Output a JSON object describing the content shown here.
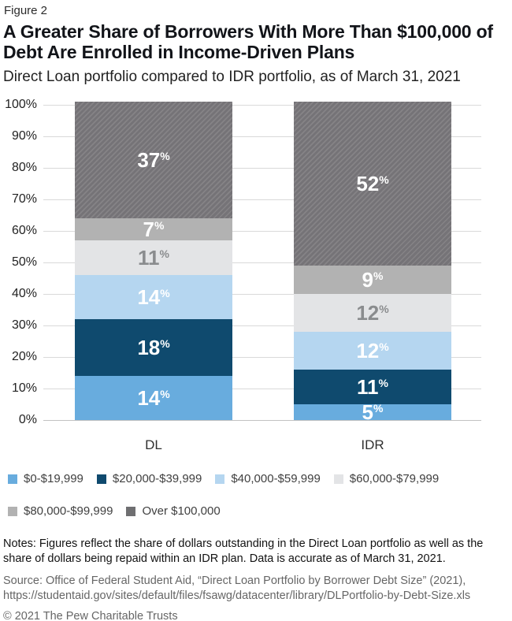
{
  "header": {
    "figure_label": "Figure 2",
    "title_lines": [
      "A Greater Share of Borrowers With More Than $100,000 of",
      "Debt Are Enrolled in Income-Driven Plans"
    ],
    "title_full": "A Greater Share of Borrowers With More Than $100,000 of Debt Are Enrolled in Income-Driven Plans",
    "subtitle": "Direct Loan portfolio compared to IDR portfolio, as of March 31, 2021"
  },
  "chart_data": {
    "type": "bar",
    "stacked": true,
    "title": "A Greater Share of Borrowers With More Than $100,000 of Debt Are Enrolled in Income-Driven Plans",
    "subtitle": "Direct Loan portfolio compared to IDR portfolio, as of March 31, 2021",
    "categories": [
      "DL",
      "IDR"
    ],
    "series": [
      {
        "name": "$0-$19,999",
        "color": "#68acde",
        "label_color": "#ffffff",
        "values": [
          14,
          5
        ]
      },
      {
        "name": "$20,000-$39,999",
        "color": "#0f4a6e",
        "label_color": "#ffffff",
        "values": [
          18,
          11
        ]
      },
      {
        "name": "$40,000-$59,999",
        "color": "#b5d6f0",
        "label_color": "#ffffff",
        "values": [
          14,
          12
        ]
      },
      {
        "name": "$60,000-$79,999",
        "color": "#e3e4e6",
        "label_color": "#8a8c8e",
        "values": [
          11,
          12
        ]
      },
      {
        "name": "$80,000-$99,999",
        "color": "#b2b2b2",
        "label_color": "#ffffff",
        "values": [
          7,
          9
        ]
      },
      {
        "name": "Over $100,000",
        "color": "#757377",
        "hatch": true,
        "hatch_stripe": "#858386",
        "legend_color": "#6f6f71",
        "label_color": "#ffffff",
        "values": [
          37,
          52
        ]
      }
    ],
    "value_suffix": "%",
    "xlabel": "",
    "ylabel": "",
    "ylim": [
      0,
      100
    ],
    "y_ticks": [
      0,
      10,
      20,
      30,
      40,
      50,
      60,
      70,
      80,
      90,
      100
    ],
    "y_tick_suffix": "%",
    "grid": "horizontal",
    "gridline_color": "#d9d9d9",
    "legend_position": "bottom"
  },
  "footer": {
    "notes": "Notes: Figures reflect the share of dollars outstanding in the Direct Loan portfolio as well as the share of dollars being repaid within an IDR plan. Data is accurate as of March 31, 2021.",
    "source": "Source: Office of Federal Student Aid, “Direct Loan Portfolio by Borrower Debt Size” (2021), https://studentaid.gov/sites/default/files/fsawg/datacenter/library/DLPortfolio-by-Debt-Size.xls",
    "copyright": "© 2021 The Pew Charitable Trusts"
  }
}
